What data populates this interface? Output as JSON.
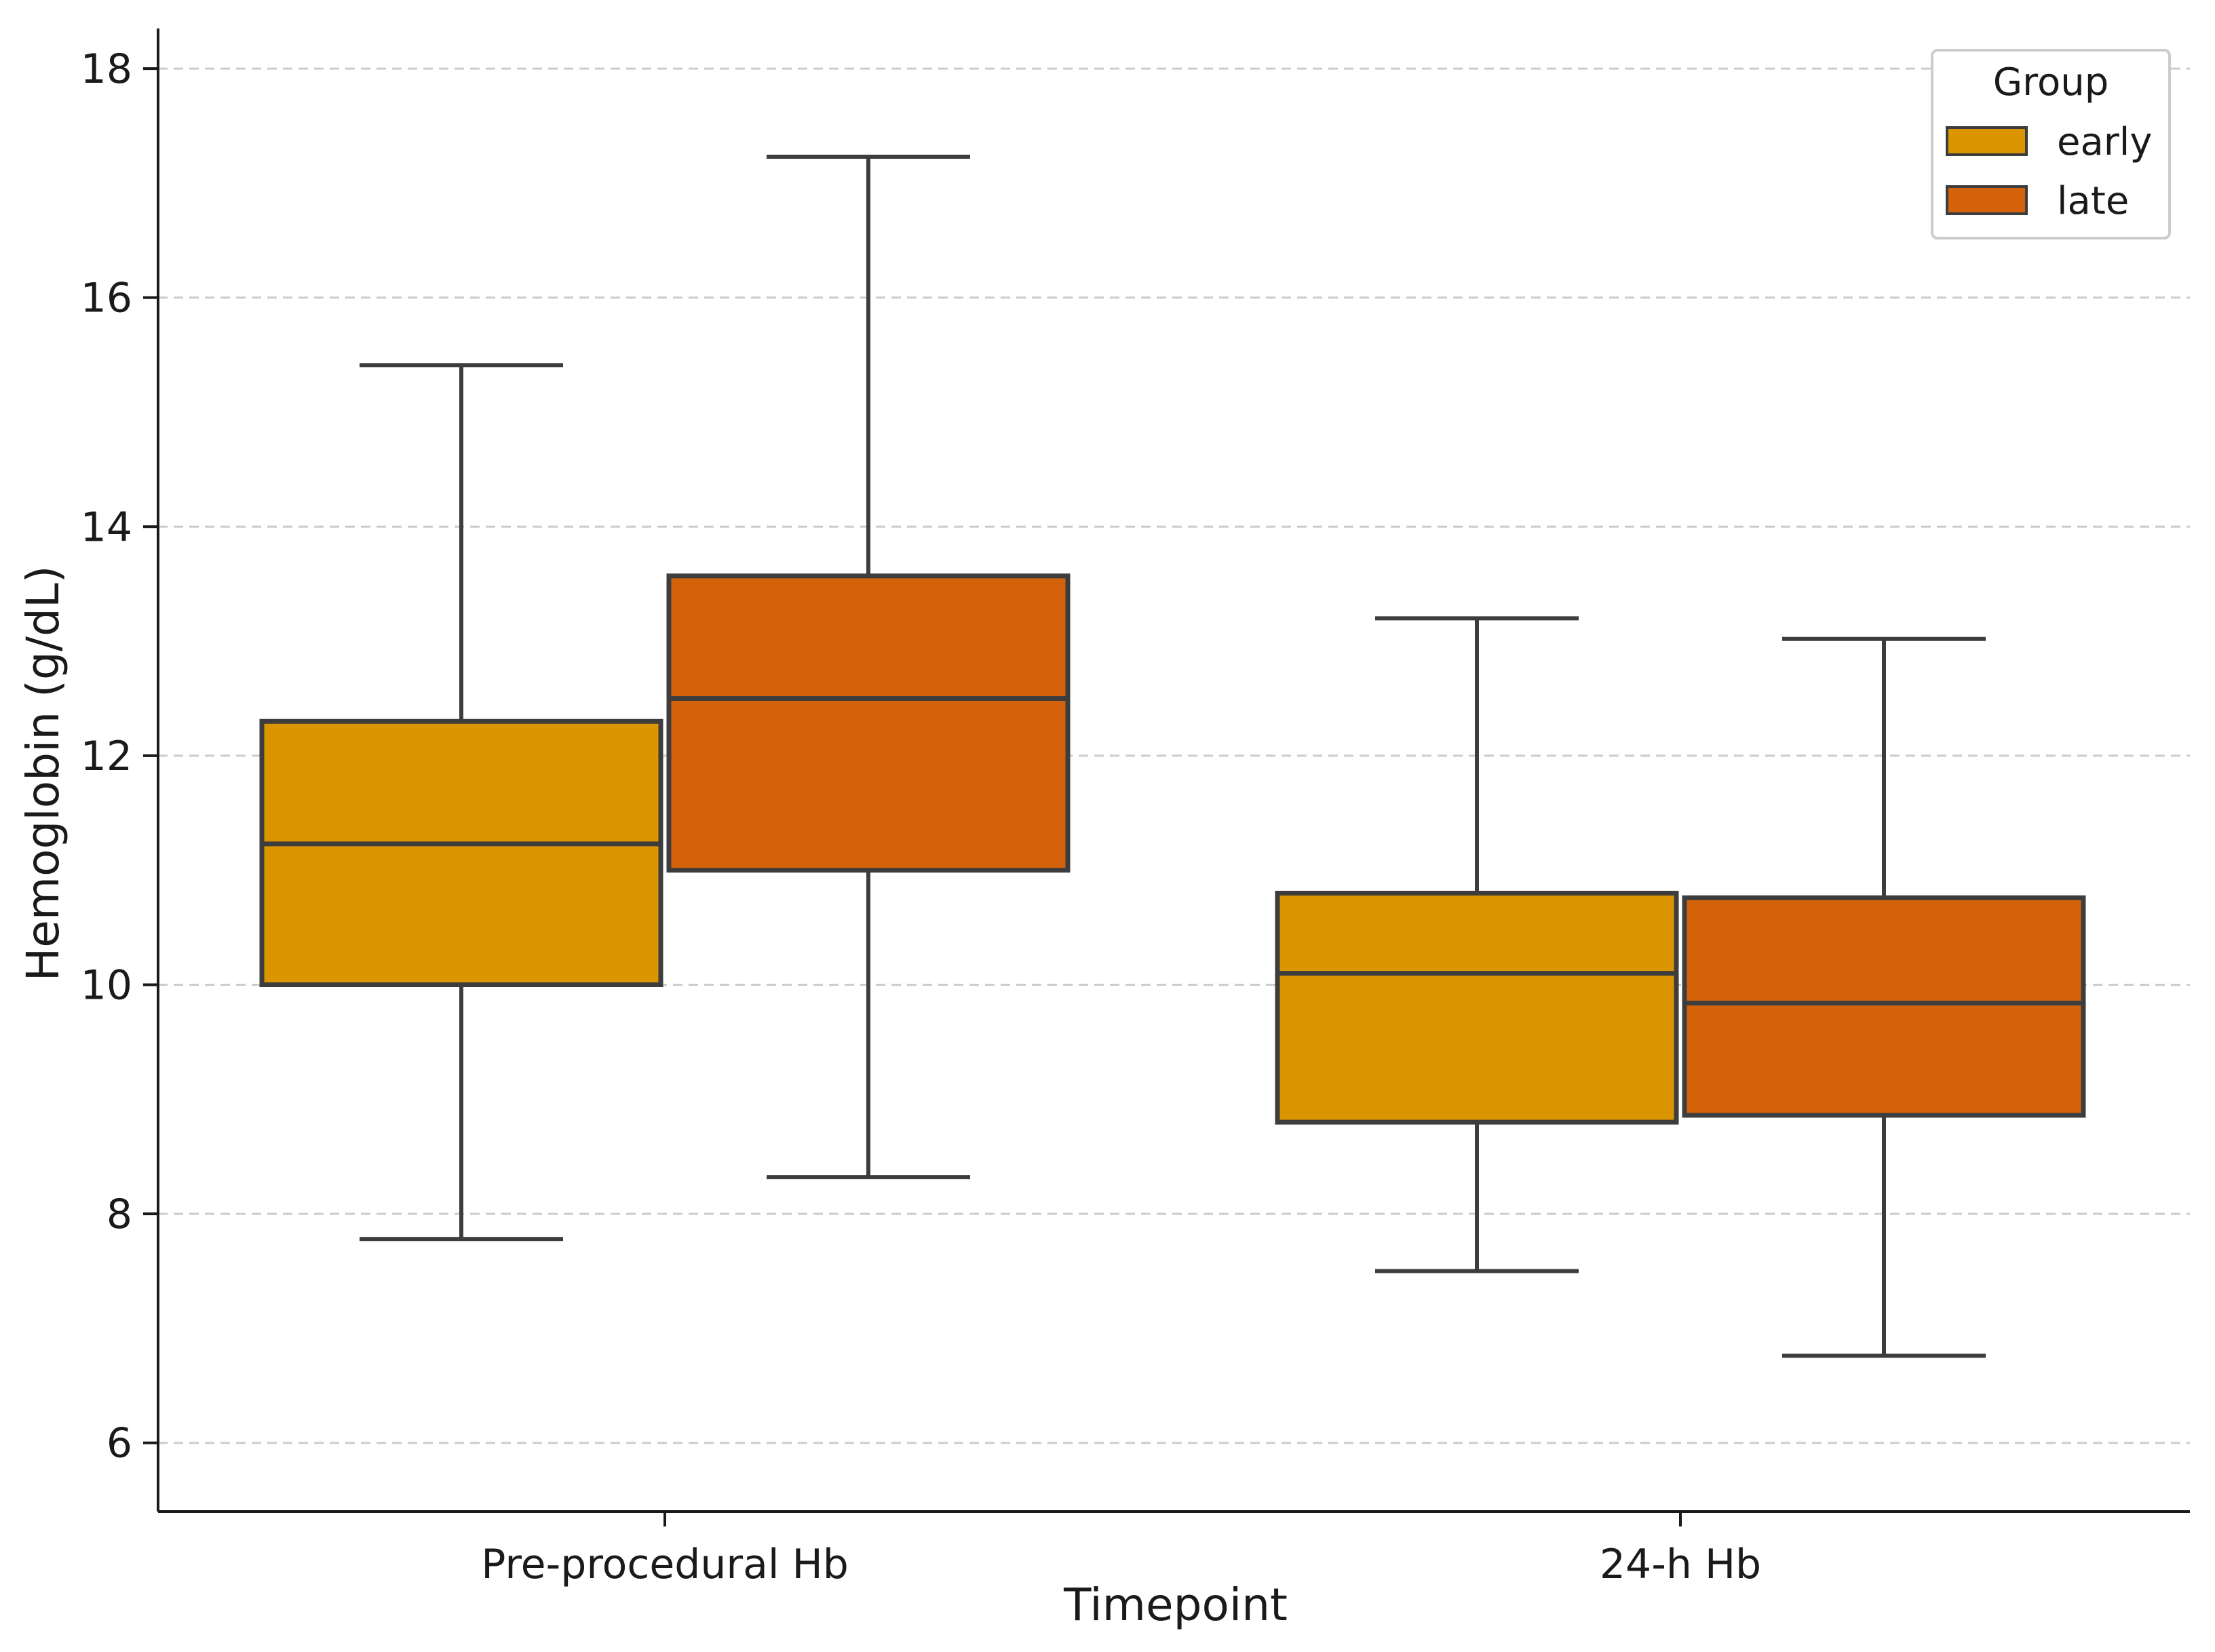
{
  "chart_data": {
    "type": "box",
    "title": "",
    "xlabel": "Timepoint",
    "ylabel": "Hemoglobin (g/dL)",
    "ylim": [
      5.4,
      18.35
    ],
    "yticks": [
      6,
      8,
      10,
      12,
      14,
      16,
      18
    ],
    "grid": "y-dashed",
    "categories": [
      "Pre-procedural Hb",
      "24-h Hb"
    ],
    "legend": {
      "title": "Group",
      "position": "top-right",
      "entries": [
        "early",
        "late"
      ]
    },
    "series": [
      {
        "name": "early",
        "color": "#DB9500",
        "boxes": [
          {
            "category": "Pre-procedural Hb",
            "whisker_low": 7.78,
            "q1": 10.0,
            "median": 11.23,
            "q3": 12.3,
            "whisker_high": 15.41
          },
          {
            "category": "24-h Hb",
            "whisker_low": 7.5,
            "q1": 8.8,
            "median": 10.1,
            "q3": 10.8,
            "whisker_high": 13.2
          }
        ]
      },
      {
        "name": "late",
        "color": "#D3620B",
        "boxes": [
          {
            "category": "Pre-procedural Hb",
            "whisker_low": 8.32,
            "q1": 11.0,
            "median": 12.5,
            "q3": 13.57,
            "whisker_high": 17.23
          },
          {
            "category": "24-h Hb",
            "whisker_low": 6.76,
            "q1": 8.86,
            "median": 9.84,
            "q3": 10.76,
            "whisker_high": 13.02
          }
        ]
      }
    ],
    "style": {
      "box_edge_color": "#3d3d3d",
      "axis_color": "#1a1a1a",
      "grid_color": "#cccccc",
      "legend_border_color": "#cccccc"
    }
  }
}
